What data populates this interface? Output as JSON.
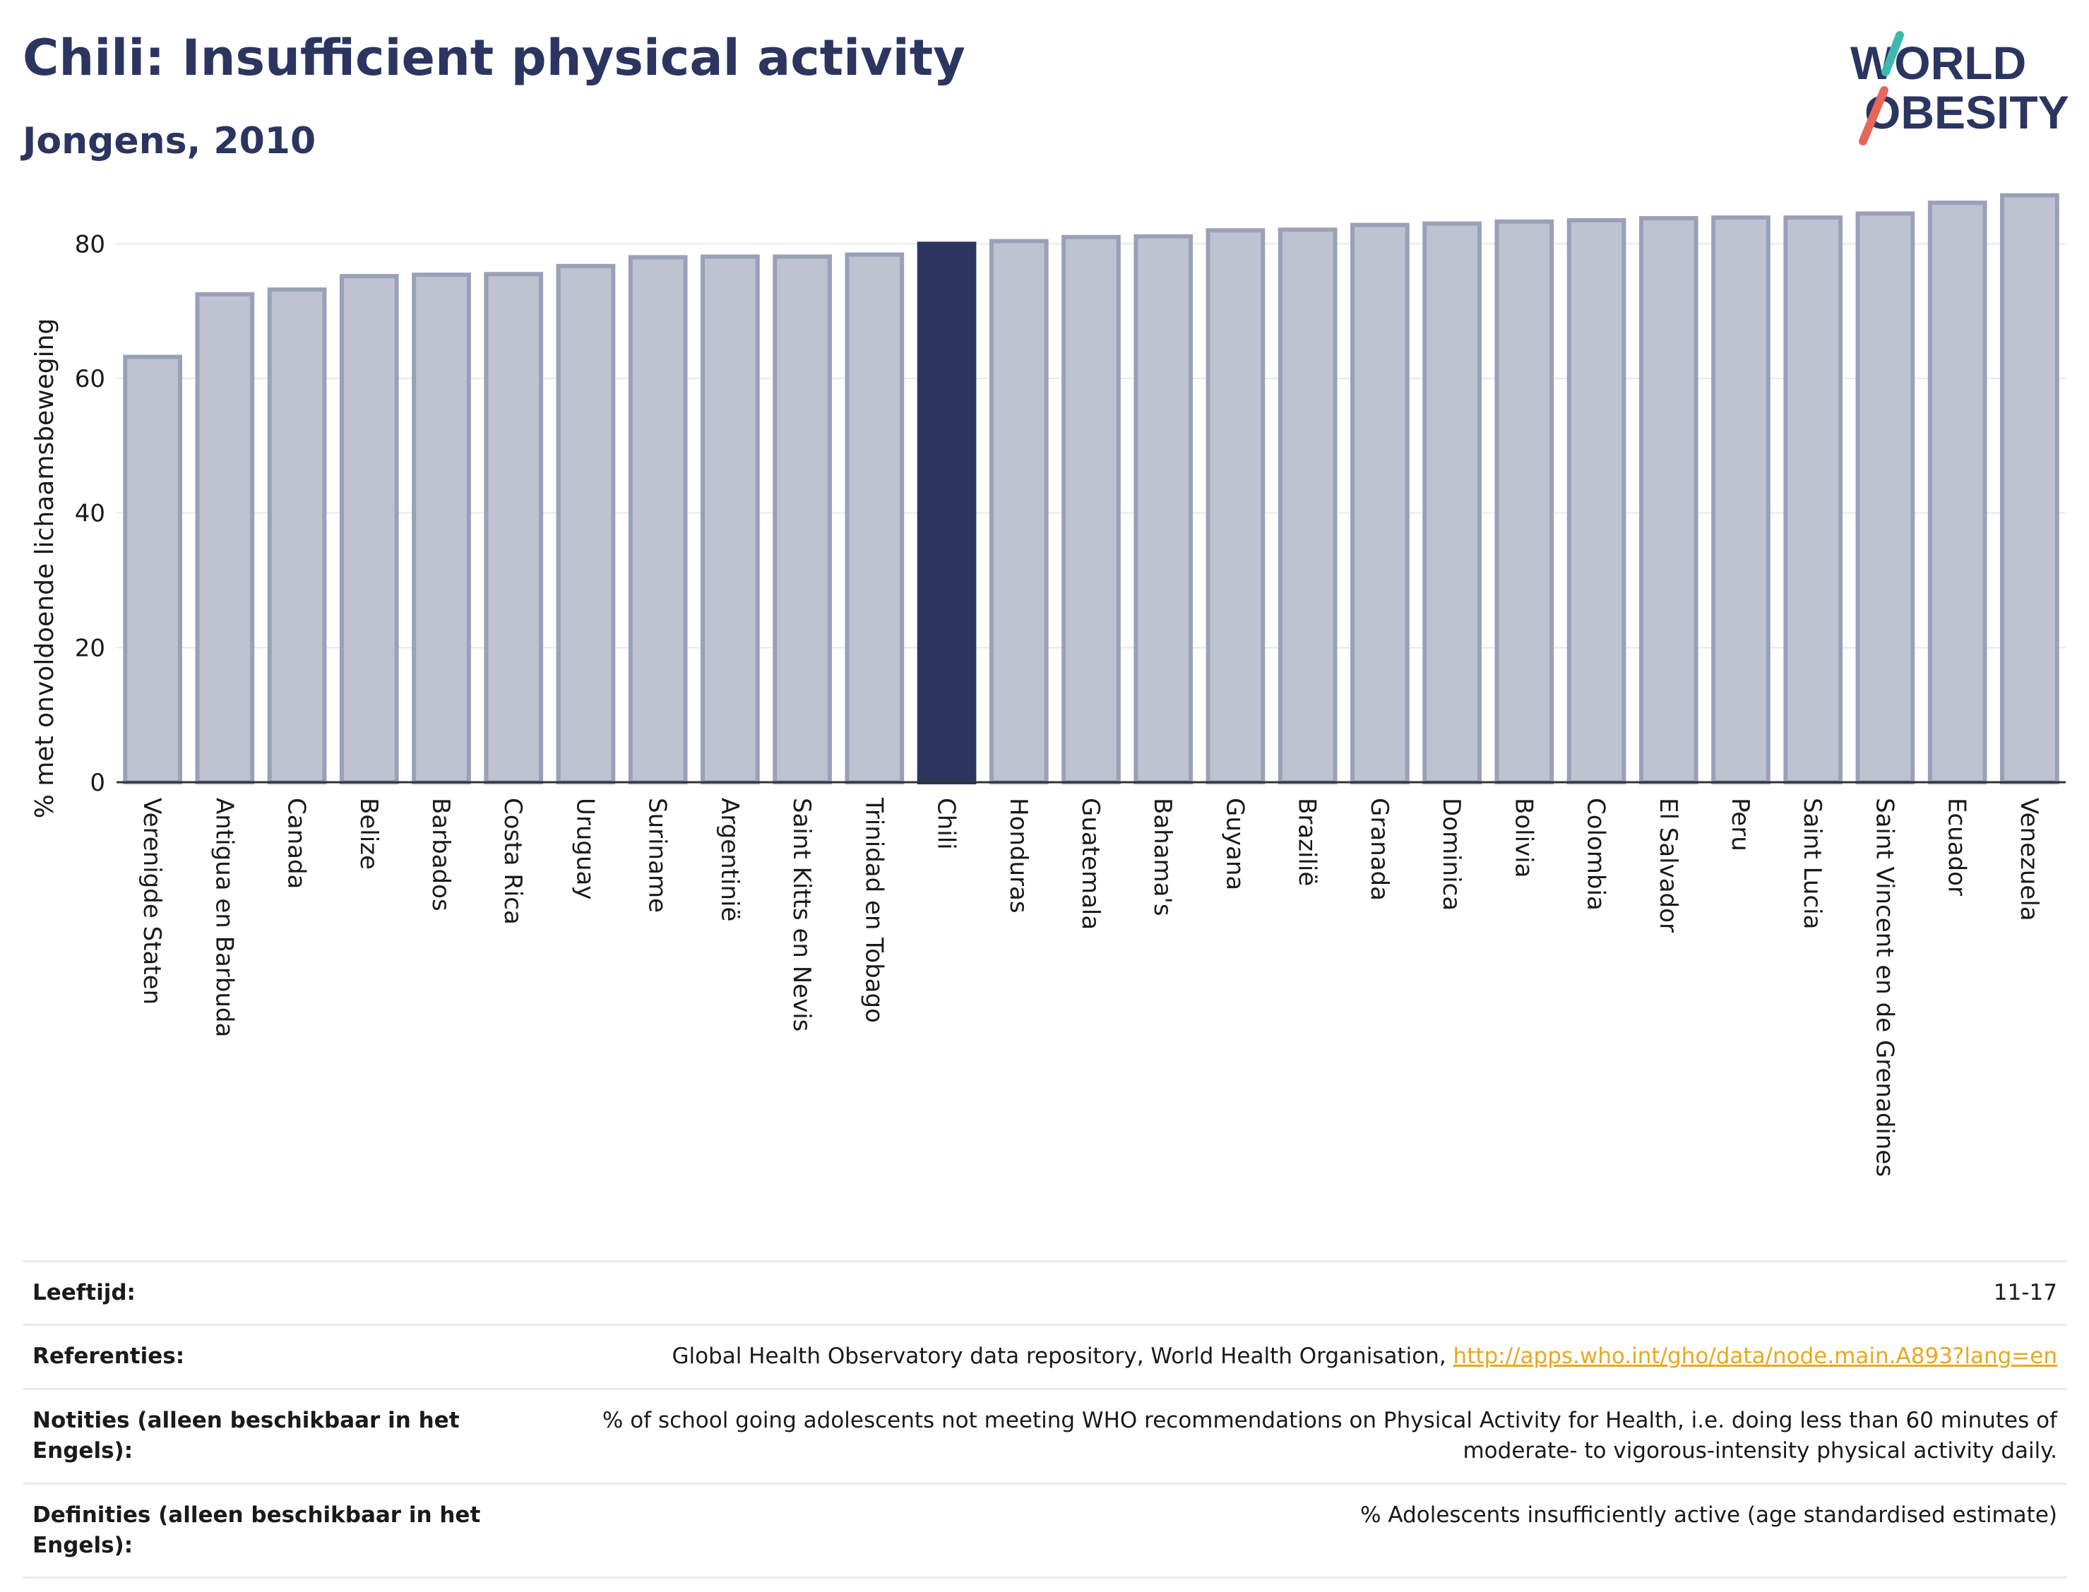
{
  "header": {
    "title": "Chili: Insufficient physical activity",
    "subtitle": "Jongens, 2010"
  },
  "logo": {
    "line1": "WORLD",
    "line2": "OBESITY"
  },
  "colors": {
    "title": "#2b3560",
    "bar": "#bfc2d0",
    "bar_edge": "#9aa0b8",
    "highlight": "#2b3560",
    "link": "#e8a91f"
  },
  "chart_data": {
    "type": "bar",
    "ylabel": "% met onvoldoende lichaamsbeweging",
    "ylim": [
      0,
      90
    ],
    "yticks": [
      0,
      20,
      40,
      60,
      80
    ],
    "highlight": "Chili",
    "categories": [
      "Verenigde Staten",
      "Antigua en Barbuda",
      "Canada",
      "Belize",
      "Barbados",
      "Costa Rica",
      "Uruguay",
      "Suriname",
      "Argentinië",
      "Saint Kitts en Nevis",
      "Trinidad en Tobago",
      "Chili",
      "Honduras",
      "Guatemala",
      "Bahama's",
      "Guyana",
      "Brazilië",
      "Granada",
      "Dominica",
      "Bolivia",
      "Colombia",
      "El Salvador",
      "Peru",
      "Saint Lucia",
      "Saint Vincent en de Grenadines",
      "Ecuador",
      "Venezuela"
    ],
    "values": [
      63.2,
      72.5,
      73.2,
      75.2,
      75.4,
      75.5,
      76.7,
      78.0,
      78.1,
      78.1,
      78.4,
      80.0,
      80.4,
      81.0,
      81.1,
      82.0,
      82.1,
      82.8,
      83.0,
      83.3,
      83.5,
      83.8,
      83.9,
      83.9,
      84.5,
      86.1,
      87.2
    ]
  },
  "meta": [
    {
      "key": "Leeftijd:",
      "value": "11-17"
    },
    {
      "key": "Referenties:",
      "value": "Global Health Observatory data repository, World Health Organisation,",
      "link": "http://apps.who.int/gho/data/node.main.A893?lang=en"
    },
    {
      "key": "Notities (alleen beschikbaar in het Engels):",
      "value": "% of school going adolescents not meeting WHO recommendations on Physical Activity for Health, i.e. doing less than 60 minutes of moderate- to vigorous-intensity physical activity daily."
    },
    {
      "key": "Definities (alleen beschikbaar in het Engels):",
      "value": "% Adolescents insufficiently active (age standardised estimate)"
    }
  ]
}
